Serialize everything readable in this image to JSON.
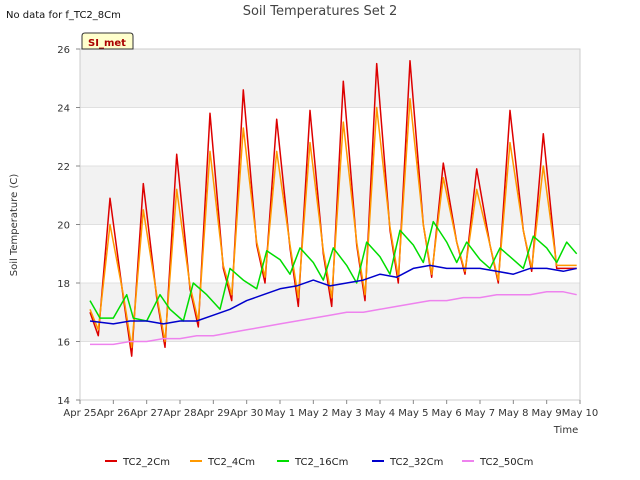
{
  "no_data_note": "No data for f_TC2_8Cm",
  "badge": "SI_met",
  "chart_data": {
    "type": "line",
    "title": "Soil Temperatures Set 2",
    "xlabel": "Time",
    "ylabel": "Soil Temperature (C)",
    "xlim": [
      0,
      15
    ],
    "ylim": [
      14,
      26
    ],
    "yticks": [
      14,
      16,
      18,
      20,
      22,
      24,
      26
    ],
    "x_tick_labels": [
      "Apr 25",
      "Apr 26",
      "Apr 27",
      "Apr 28",
      "Apr 29",
      "Apr 30",
      "May 1",
      "May 2",
      "May 3",
      "May 4",
      "May 5",
      "May 6",
      "May 7",
      "May 8",
      "May 9",
      "May 10"
    ],
    "grid": true,
    "legend_position": "bottom",
    "x_units": "days since Apr 25",
    "series": [
      {
        "name": "TC2_2Cm",
        "color": "#dd0000",
        "x": [
          0.3,
          0.55,
          0.9,
          1.3,
          1.55,
          1.9,
          2.3,
          2.55,
          2.9,
          3.3,
          3.55,
          3.9,
          4.3,
          4.55,
          4.9,
          5.3,
          5.55,
          5.9,
          6.3,
          6.55,
          6.9,
          7.3,
          7.55,
          7.9,
          8.3,
          8.55,
          8.9,
          9.3,
          9.55,
          9.9,
          10.3,
          10.55,
          10.9,
          11.3,
          11.55,
          11.9,
          12.3,
          12.55,
          12.9,
          13.3,
          13.55,
          13.9,
          14.3,
          14.55,
          14.9
        ],
        "y": [
          17.0,
          16.2,
          20.9,
          17.5,
          15.5,
          21.4,
          17.5,
          15.8,
          22.4,
          17.8,
          16.5,
          23.8,
          18.5,
          17.4,
          24.6,
          19.3,
          18.0,
          23.6,
          19.2,
          17.2,
          23.9,
          19.0,
          17.2,
          24.9,
          19.3,
          17.4,
          25.5,
          19.8,
          18.0,
          25.6,
          20.0,
          18.2,
          22.1,
          19.4,
          18.3,
          21.9,
          19.3,
          18.0,
          23.9,
          19.8,
          18.4,
          23.1,
          18.5,
          18.5,
          18.5
        ]
      },
      {
        "name": "TC2_4Cm",
        "color": "#ff9900",
        "x": [
          0.3,
          0.55,
          0.9,
          1.3,
          1.55,
          1.9,
          2.3,
          2.55,
          2.9,
          3.3,
          3.55,
          3.9,
          4.3,
          4.55,
          4.9,
          5.3,
          5.55,
          5.9,
          6.3,
          6.55,
          6.9,
          7.3,
          7.55,
          7.9,
          8.3,
          8.55,
          8.9,
          9.3,
          9.55,
          9.9,
          10.3,
          10.55,
          10.9,
          11.3,
          11.55,
          11.9,
          12.3,
          12.55,
          12.9,
          13.3,
          13.55,
          13.9,
          14.3,
          14.55,
          14.9
        ],
        "y": [
          17.1,
          16.4,
          20.0,
          17.6,
          15.8,
          20.5,
          17.6,
          16.0,
          21.2,
          17.9,
          16.7,
          22.5,
          18.6,
          17.6,
          23.3,
          19.4,
          18.2,
          22.5,
          19.3,
          17.5,
          22.8,
          19.1,
          17.5,
          23.5,
          19.4,
          17.6,
          24.0,
          19.9,
          18.2,
          24.3,
          20.0,
          18.3,
          21.6,
          19.4,
          18.4,
          21.2,
          19.3,
          18.1,
          22.8,
          19.8,
          18.5,
          22.0,
          18.6,
          18.6,
          18.6
        ]
      },
      {
        "name": "TC2_16Cm",
        "color": "#00dd00",
        "x": [
          0.3,
          0.6,
          1.0,
          1.4,
          1.6,
          2.0,
          2.4,
          2.7,
          3.1,
          3.4,
          3.8,
          4.2,
          4.5,
          4.9,
          5.3,
          5.6,
          6.0,
          6.3,
          6.6,
          7.0,
          7.3,
          7.6,
          8.0,
          8.3,
          8.6,
          9.0,
          9.3,
          9.6,
          10.0,
          10.3,
          10.6,
          11.0,
          11.3,
          11.6,
          12.0,
          12.3,
          12.6,
          13.0,
          13.3,
          13.6,
          14.0,
          14.3,
          14.6,
          14.9
        ],
        "y": [
          17.4,
          16.8,
          16.8,
          17.6,
          16.8,
          16.7,
          17.6,
          17.1,
          16.7,
          18.0,
          17.6,
          17.1,
          18.5,
          18.1,
          17.8,
          19.1,
          18.8,
          18.3,
          19.2,
          18.7,
          18.1,
          19.2,
          18.6,
          18.0,
          19.4,
          18.9,
          18.3,
          19.8,
          19.3,
          18.7,
          20.1,
          19.4,
          18.7,
          19.4,
          18.8,
          18.5,
          19.2,
          18.8,
          18.5,
          19.6,
          19.2,
          18.7,
          19.4,
          19.0
        ]
      },
      {
        "name": "TC2_32Cm",
        "color": "#0000cc",
        "x": [
          0.3,
          1.0,
          1.5,
          2.0,
          2.5,
          3.0,
          3.5,
          4.0,
          4.5,
          5.0,
          5.5,
          6.0,
          6.5,
          7.0,
          7.5,
          8.0,
          8.5,
          9.0,
          9.5,
          10.0,
          10.5,
          11.0,
          11.5,
          12.0,
          12.5,
          13.0,
          13.5,
          14.0,
          14.5,
          14.9
        ],
        "y": [
          16.7,
          16.6,
          16.7,
          16.7,
          16.6,
          16.7,
          16.7,
          16.9,
          17.1,
          17.4,
          17.6,
          17.8,
          17.9,
          18.1,
          17.9,
          18.0,
          18.1,
          18.3,
          18.2,
          18.5,
          18.6,
          18.5,
          18.5,
          18.5,
          18.4,
          18.3,
          18.5,
          18.5,
          18.4,
          18.5
        ]
      },
      {
        "name": "TC2_50Cm",
        "color": "#ee82ee",
        "x": [
          0.3,
          1.0,
          1.5,
          2.0,
          2.5,
          3.0,
          3.5,
          4.0,
          4.5,
          5.0,
          5.5,
          6.0,
          6.5,
          7.0,
          7.5,
          8.0,
          8.5,
          9.0,
          9.5,
          10.0,
          10.5,
          11.0,
          11.5,
          12.0,
          12.5,
          13.0,
          13.5,
          14.0,
          14.5,
          14.9
        ],
        "y": [
          15.9,
          15.9,
          16.0,
          16.0,
          16.1,
          16.1,
          16.2,
          16.2,
          16.3,
          16.4,
          16.5,
          16.6,
          16.7,
          16.8,
          16.9,
          17.0,
          17.0,
          17.1,
          17.2,
          17.3,
          17.4,
          17.4,
          17.5,
          17.5,
          17.6,
          17.6,
          17.6,
          17.7,
          17.7,
          17.6
        ]
      }
    ]
  }
}
